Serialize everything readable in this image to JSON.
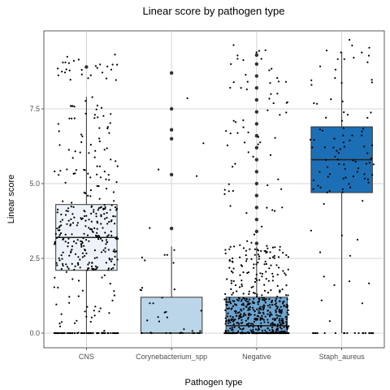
{
  "chart_data": {
    "type": "box",
    "title": "Linear score by pathogen type",
    "xlabel": "Pathogen type",
    "ylabel": "Linear score",
    "ylim": [
      -0.45,
      10.0
    ],
    "yticks": [
      0.0,
      2.5,
      5.0,
      7.5
    ],
    "ytick_labels": [
      "0.0",
      "2.5",
      "5.0",
      "7.5"
    ],
    "grid": true,
    "jitter_points_overlay": true,
    "categories": [
      "CNS",
      "Corynebacterium_spp",
      "Negative",
      "Staph_aureus"
    ],
    "boxes": [
      {
        "category": "CNS",
        "whisker_low": 0.0,
        "q1": 2.1,
        "median": 3.2,
        "q3": 4.3,
        "whisker_high": 7.9,
        "fill": "#eef3fb",
        "approx_points": 420,
        "outliers": [
          8.9
        ]
      },
      {
        "category": "Corynebacterium_spp",
        "whisker_low": 0.0,
        "q1": 0.0,
        "median": 0.0,
        "q3": 1.2,
        "whisker_high": 2.9,
        "fill": "#bcd6e9",
        "approx_points": 45,
        "outliers": [
          3.5,
          5.3,
          6.5,
          6.8,
          7.5,
          8.7
        ]
      },
      {
        "category": "Negative",
        "whisker_low": 0.0,
        "q1": 0.0,
        "median": 0.25,
        "q3": 1.2,
        "whisker_high": 2.9,
        "fill": "#6da4d0",
        "approx_points": 2200,
        "outliers": [
          3.0,
          3.4,
          3.8,
          4.2,
          4.6,
          5.0,
          5.4,
          5.8,
          6.2,
          6.6,
          7.0,
          7.4,
          7.8,
          8.2,
          8.6,
          9.0,
          9.3
        ]
      },
      {
        "category": "Staph_aureus",
        "whisker_low": 0.0,
        "q1": 4.7,
        "median": 5.8,
        "q3": 6.9,
        "whisker_high": 9.4,
        "fill": "#1c6fb5",
        "approx_points": 120,
        "outliers": []
      }
    ]
  }
}
